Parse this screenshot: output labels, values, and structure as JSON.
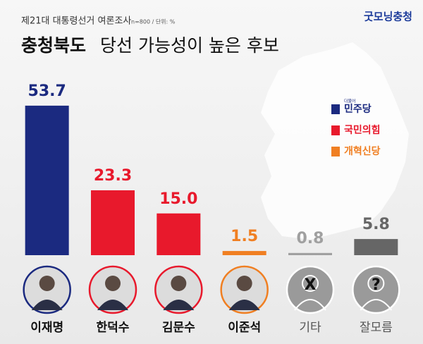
{
  "chart_data": {
    "type": "bar",
    "brand": "굿모닝충청",
    "kicker": "제21대 대통령선거 여론조사",
    "note": "n=800 / 단위: %",
    "title": [
      "충청북도",
      "당선 가능성이 높은 후보"
    ],
    "categories": [
      "이재명",
      "한덕수",
      "김문수",
      "이준석",
      "기타",
      "잘모름"
    ],
    "values": [
      53.7,
      23.3,
      15.0,
      1.5,
      0.8,
      5.8
    ],
    "value_labels": [
      "53.7",
      "23.3",
      "15.0",
      "1.5",
      "0.8",
      "5.8"
    ],
    "colors": [
      "#1b2a80",
      "#e8192c",
      "#e8192c",
      "#f07f22",
      "#a0a0a0",
      "#666666"
    ],
    "placeholder_symbols": [
      "X",
      "?"
    ],
    "ylim": [
      0,
      60
    ],
    "legend": [
      {
        "prefix": "더불어",
        "label": "민주당",
        "color": "#1b2a80"
      },
      {
        "label": "국민의힘",
        "color": "#e8192c"
      },
      {
        "label": "개혁신당",
        "color": "#f07f22"
      }
    ]
  }
}
